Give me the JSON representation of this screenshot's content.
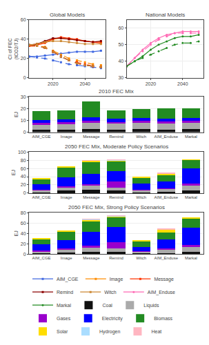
{
  "chart_data": [
    {
      "type": "line",
      "title": "Global Models",
      "ylabel": "CI of FEC\n(tCO2/TJ)",
      "x": [
        2005,
        2010,
        2015,
        2020,
        2025,
        2030,
        2035,
        2040,
        2045,
        2050
      ],
      "xlim": [
        2005,
        2053
      ],
      "xticks": [
        2020,
        2040
      ],
      "ylim": [
        0,
        60
      ],
      "yticks": [
        0,
        20,
        40,
        60
      ],
      "grid": true,
      "legend": "bottom",
      "series": [
        {
          "name": "AIM_CGE",
          "color": "#4169e1",
          "marker": "square",
          "line_style": "solid",
          "values": [
            22,
            22,
            23,
            24,
            25,
            26,
            27,
            27,
            27,
            28
          ]
        },
        {
          "name": "AIM_CGE",
          "color": "#4169e1",
          "marker": "square",
          "line_style": "dashed",
          "values": [
            22,
            21,
            20,
            18,
            16,
            14,
            13,
            12,
            11,
            10
          ]
        },
        {
          "name": "Image",
          "color": "#ff8c00",
          "marker": "square",
          "line_style": "solid",
          "values": [
            33,
            35,
            37,
            40,
            41,
            40,
            39,
            38,
            37,
            37
          ]
        },
        {
          "name": "Image",
          "color": "#ff8c00",
          "marker": "square",
          "line_style": "dashed",
          "values": [
            33,
            33,
            32,
            28,
            24,
            20,
            18,
            16,
            14,
            13
          ]
        },
        {
          "name": "Message",
          "color": "#ff3300",
          "marker": "square",
          "line_style": "solid",
          "values": [
            33,
            34,
            36,
            40,
            42,
            41,
            40,
            38,
            37,
            36
          ]
        },
        {
          "name": "Message",
          "color": "#ff3300",
          "marker": "square",
          "line_style": "dashed",
          "values": [
            33,
            33,
            31,
            27,
            22,
            18,
            16,
            14,
            12,
            11
          ]
        },
        {
          "name": "Remind",
          "color": "#8b0000",
          "marker": "square",
          "line_style": "solid",
          "values": [
            34,
            35,
            38,
            41,
            41,
            40,
            39,
            38,
            37,
            38
          ]
        },
        {
          "name": "Remind",
          "color": "#8b0000",
          "marker": "square",
          "line_style": "dashed",
          "values": [
            34,
            33,
            31,
            27,
            22,
            18,
            15,
            13,
            12,
            11
          ]
        },
        {
          "name": "Witch",
          "color": "#cc8833",
          "marker": "square",
          "line_style": "solid",
          "values": [
            34,
            35,
            37,
            38,
            38,
            37,
            36,
            35,
            35,
            35
          ]
        },
        {
          "name": "Witch",
          "color": "#cc8833",
          "marker": "square",
          "line_style": "dashed",
          "values": [
            34,
            33,
            31,
            27,
            22,
            18,
            15,
            13,
            12,
            11
          ]
        }
      ]
    },
    {
      "type": "line",
      "title": "National Models",
      "x": [
        2005,
        2010,
        2015,
        2020,
        2025,
        2030,
        2035,
        2040,
        2045,
        2050
      ],
      "xlim": [
        2005,
        2053
      ],
      "xticks": [
        2020,
        2040
      ],
      "ylim": [
        30,
        65
      ],
      "yticks": [
        30,
        40,
        50,
        60
      ],
      "grid": true,
      "legend": "bottom",
      "series": [
        {
          "name": "AIM_Enduse",
          "color": "#ff69b4",
          "marker": "circle",
          "line_style": "solid",
          "values": [
            37,
            42,
            47,
            51,
            54,
            56,
            57,
            58,
            58,
            58
          ]
        },
        {
          "name": "AIM_Enduse",
          "color": "#ff69b4",
          "marker": "circle",
          "line_style": "dashed",
          "values": [
            37,
            42,
            46,
            50,
            53,
            55,
            57,
            57,
            57,
            57
          ]
        },
        {
          "name": "Markal",
          "color": "#228b22",
          "marker": "circle",
          "line_style": "solid",
          "values": [
            37,
            40,
            43,
            47,
            50,
            52,
            54,
            55,
            55,
            56
          ]
        },
        {
          "name": "Markal",
          "color": "#228b22",
          "marker": "circle",
          "line_style": "dashed",
          "values": [
            37,
            40,
            42,
            44,
            46,
            48,
            50,
            51,
            51,
            52
          ]
        }
      ]
    },
    {
      "type": "bar",
      "stacked": true,
      "title": "2010 FEC Mix",
      "ylabel": "EJ",
      "categories": [
        "AIM_CGE",
        "Image",
        "Message",
        "Remind",
        "Witch",
        "AIM_Enduse",
        "Markal"
      ],
      "ylim": [
        0,
        30
      ],
      "yticks": [
        0,
        10,
        20,
        30
      ],
      "grid": "y",
      "legend": "bottom",
      "series": [
        {
          "name": "Coal",
          "color": "#111111",
          "values": [
            2.0,
            2.0,
            2.5,
            2.2,
            2.5,
            2.0,
            2.5
          ]
        },
        {
          "name": "Liquids",
          "color": "#aaaaaa",
          "values": [
            4.5,
            5.0,
            5.5,
            5.0,
            5.5,
            5.5,
            5.5
          ]
        },
        {
          "name": "Gases",
          "color": "#9900cc",
          "values": [
            1.5,
            1.5,
            2.0,
            1.5,
            1.5,
            1.5,
            1.5
          ]
        },
        {
          "name": "Electricity",
          "color": "#0000ff",
          "values": [
            2.5,
            2.5,
            2.5,
            2.5,
            2.5,
            2.5,
            2.5
          ]
        },
        {
          "name": "Biomass",
          "color": "#228b22",
          "values": [
            7.5,
            7.5,
            13.5,
            7.5,
            7.5,
            8.5,
            8.0
          ]
        },
        {
          "name": "Solar",
          "color": "#ffdd00",
          "values": [
            0.0,
            0.0,
            0.0,
            0.0,
            0.0,
            0.0,
            0.0
          ]
        },
        {
          "name": "Hydrogen",
          "color": "#aaddff",
          "values": [
            0.0,
            0.0,
            0.0,
            0.0,
            0.0,
            0.0,
            0.0
          ]
        },
        {
          "name": "Heat",
          "color": "#ffb6c1",
          "values": [
            0.0,
            0.0,
            0.0,
            0.0,
            0.0,
            0.0,
            0.0
          ]
        }
      ]
    },
    {
      "type": "bar",
      "stacked": true,
      "title": "2050 FEC Mix, Moderate Policy Scenarios",
      "ylabel": "EJ",
      "categories": [
        "AIM_CGE",
        "Image",
        "Message",
        "Remind",
        "Witch",
        "AIM_Enduse",
        "Markal"
      ],
      "ylim": [
        0,
        100
      ],
      "yticks": [
        0,
        20,
        40,
        60,
        80,
        100
      ],
      "grid": "y",
      "legend": "bottom",
      "series": [
        {
          "name": "Coal",
          "color": "#111111",
          "values": [
            1.5,
            6.0,
            9.0,
            7.0,
            1.5,
            3.0,
            7.0
          ]
        },
        {
          "name": "Liquids",
          "color": "#aaaaaa",
          "values": [
            5.0,
            7.0,
            9.0,
            7.0,
            5.0,
            7.0,
            12.0
          ]
        },
        {
          "name": "Gases",
          "color": "#9900cc",
          "values": [
            2.0,
            3.0,
            4.0,
            14.0,
            2.0,
            2.0,
            4.0
          ]
        },
        {
          "name": "Electricity",
          "color": "#0000ff",
          "values": [
            13.0,
            22.0,
            25.0,
            25.0,
            14.0,
            17.0,
            37.0
          ]
        },
        {
          "name": "Biomass",
          "color": "#228b22",
          "values": [
            13.0,
            25.0,
            28.0,
            25.0,
            15.0,
            15.0,
            20.0
          ]
        },
        {
          "name": "Solar",
          "color": "#ffdd00",
          "values": [
            0.5,
            1.0,
            3.5,
            1.5,
            1.0,
            4.0,
            1.0
          ]
        },
        {
          "name": "Hydrogen",
          "color": "#aaddff",
          "values": [
            0.0,
            0.0,
            0.5,
            0.5,
            0.0,
            0.0,
            0.0
          ]
        },
        {
          "name": "Heat",
          "color": "#ffb6c1",
          "values": [
            0.0,
            0.0,
            0.5,
            1.0,
            0.0,
            1.5,
            0.0
          ]
        }
      ]
    },
    {
      "type": "bar",
      "stacked": true,
      "title": "2050 FEC Mix, Strong Policy Scenarios",
      "ylabel": "EJ",
      "categories": [
        "AIM_CGE",
        "Image",
        "Message",
        "Remind",
        "Witch",
        "AIM_Enduse",
        "Markal"
      ],
      "ylim": [
        0,
        80
      ],
      "yticks": [
        0,
        20,
        40,
        60,
        80
      ],
      "grid": "y",
      "legend": "bottom",
      "series": [
        {
          "name": "Coal",
          "color": "#111111",
          "values": [
            1.0,
            2.5,
            4.0,
            4.0,
            1.0,
            2.0,
            4.0
          ]
        },
        {
          "name": "Liquids",
          "color": "#aaaaaa",
          "values": [
            4.0,
            6.0,
            8.0,
            7.0,
            3.5,
            7.0,
            10.0
          ]
        },
        {
          "name": "Gases",
          "color": "#9900cc",
          "values": [
            2.0,
            2.0,
            4.0,
            12.0,
            1.5,
            2.0,
            4.0
          ]
        },
        {
          "name": "Electricity",
          "color": "#0000ff",
          "values": [
            12.0,
            17.0,
            27.0,
            30.0,
            8.0,
            17.0,
            33.0
          ]
        },
        {
          "name": "Biomass",
          "color": "#228b22",
          "values": [
            10.0,
            16.0,
            20.0,
            18.0,
            10.0,
            14.0,
            18.0
          ]
        },
        {
          "name": "Solar",
          "color": "#ffdd00",
          "values": [
            0.5,
            0.5,
            3.5,
            2.0,
            1.5,
            5.0,
            1.0
          ]
        },
        {
          "name": "Hydrogen",
          "color": "#aaddff",
          "values": [
            0.0,
            0.0,
            0.5,
            0.5,
            0.0,
            0.0,
            0.0
          ]
        },
        {
          "name": "Heat",
          "color": "#ffb6c1",
          "values": [
            0.0,
            0.0,
            0.5,
            1.0,
            0.0,
            1.5,
            0.0
          ]
        }
      ]
    }
  ]
}
